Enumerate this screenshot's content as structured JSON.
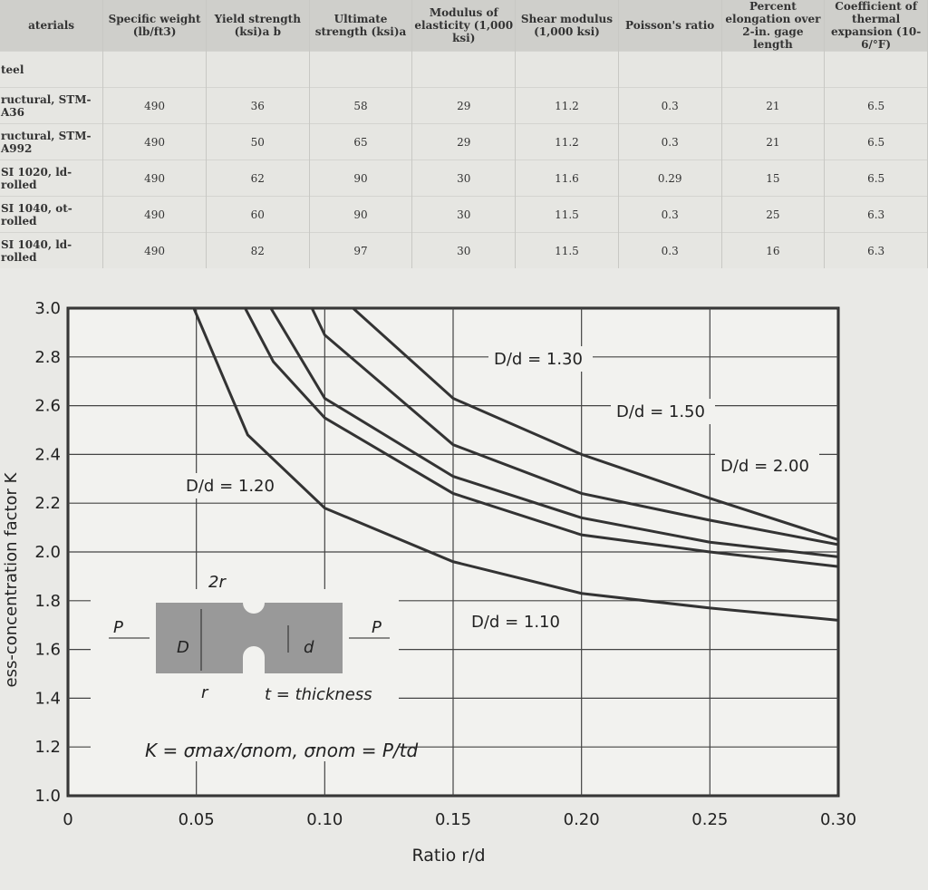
{
  "table": {
    "section": "teel",
    "header": [
      "aterials",
      "Specific weight (lb/ft3)",
      "Yield strength (ksi)a b",
      "Ultimate strength (ksi)a",
      "Modulus of elasticity (1,000 ksi)",
      "Shear modulus (1,000 ksi)",
      "Poisson's ratio",
      "Percent elongation over 2-in. gage length",
      "Coefficient of thermal expansion (10-6/°F)"
    ],
    "rows": [
      [
        "ructural, STM-A36",
        490,
        36,
        58,
        29,
        11.2,
        0.3,
        21,
        6.5
      ],
      [
        "ructural, STM-A992",
        490,
        50,
        65,
        29,
        11.2,
        0.3,
        21,
        6.5
      ],
      [
        "SI 1020, ld-rolled",
        490,
        62,
        90,
        30,
        11.6,
        0.29,
        15,
        6.5
      ],
      [
        "SI 1040, ot-rolled",
        490,
        60,
        90,
        30,
        11.5,
        0.3,
        25,
        6.3
      ],
      [
        "SI 1040, ld-rolled",
        490,
        82,
        97,
        30,
        11.5,
        0.3,
        16,
        6.3
      ]
    ]
  },
  "chart_data": {
    "type": "line",
    "x_label": "Ratio r/d",
    "y_label": "ess-concentration factor K",
    "xlim": [
      0,
      0.3
    ],
    "ylim": [
      1,
      3
    ],
    "xticks": [
      {
        "value": 0,
        "label": "0"
      },
      0.05,
      {
        "value": 0.1,
        "label": "0.10"
      },
      0.15,
      {
        "value": 0.2,
        "label": "0.20"
      },
      0.25,
      {
        "value": 0.3,
        "label": "0.30"
      }
    ],
    "yticks": [
      {
        "value": 1,
        "label": "1.0"
      },
      1.2,
      1.4,
      1.6,
      1.8,
      {
        "value": 2,
        "label": "2.0"
      },
      2.2,
      2.4,
      2.6,
      2.8,
      {
        "value": 3,
        "label": "3.0"
      }
    ],
    "grid": true,
    "series": [
      {
        "name": "D/d = 1.10",
        "color": "#333333",
        "x": [
          0.049,
          0.07,
          0.1,
          0.15,
          0.2,
          0.25,
          0.3
        ],
        "values": [
          3.0,
          2.48,
          2.18,
          1.96,
          1.83,
          1.77,
          1.72
        ]
      },
      {
        "name": "D/d = 1.20",
        "color": "#333333",
        "x": [
          0.069,
          0.08,
          0.1,
          0.15,
          0.2,
          0.25,
          0.3
        ],
        "values": [
          3.0,
          2.78,
          2.55,
          2.24,
          2.07,
          2.0,
          1.94
        ]
      },
      {
        "name": "D/d = 1.30",
        "color": "#333333",
        "x": [
          0.079,
          0.1,
          0.15,
          0.2,
          0.25,
          0.3
        ],
        "values": [
          3.0,
          2.63,
          2.31,
          2.14,
          2.04,
          1.98
        ]
      },
      {
        "name": "D/d = 1.50",
        "color": "#333333",
        "x": [
          0.095,
          0.1,
          0.15,
          0.2,
          0.25,
          0.3
        ],
        "values": [
          3.0,
          2.89,
          2.44,
          2.24,
          2.13,
          2.03
        ]
      },
      {
        "name": "D/d = 2.00",
        "color": "#333333",
        "x": [
          0.111,
          0.15,
          0.2,
          0.25,
          0.3
        ],
        "values": [
          3.0,
          2.63,
          2.4,
          2.22,
          2.05
        ]
      }
    ],
    "annotations": [
      "2r",
      "P",
      "P",
      "D",
      "d",
      "r",
      "t = thickness",
      "K = σmax/σnom, σnom = P/td"
    ]
  }
}
